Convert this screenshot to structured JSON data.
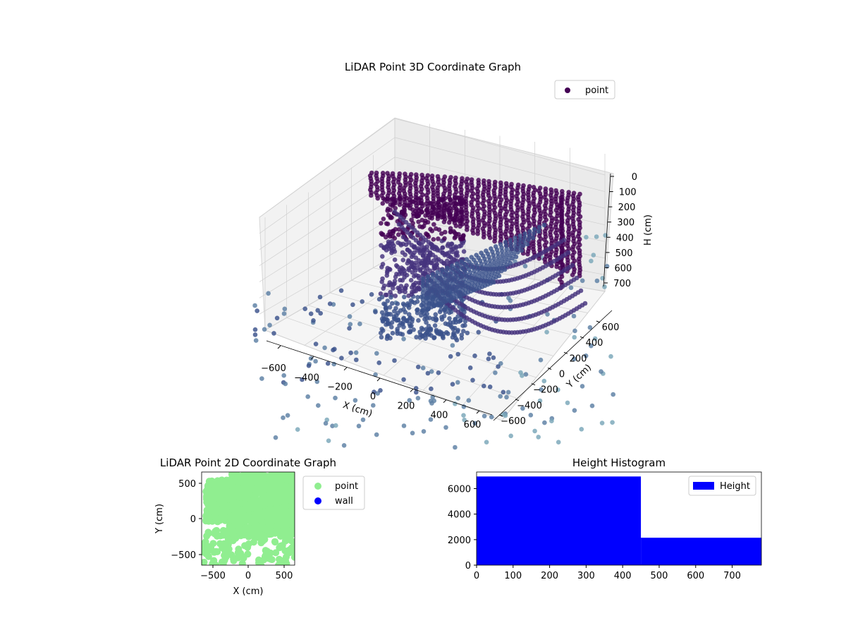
{
  "chart_data": [
    {
      "type": "scatter",
      "projection": "3d",
      "title": "LiDAR Point 3D Coordinate Graph",
      "xlabel": "X (cm)",
      "ylabel": "Y (cm)",
      "zlabel": "H (cm)",
      "xticks": [
        "−600",
        "−400",
        "−200",
        "0",
        "200",
        "400",
        "600"
      ],
      "yticks": [
        "−600",
        "−400",
        "−200",
        "0",
        "200",
        "400",
        "600"
      ],
      "zticks": [
        "0",
        "100",
        "200",
        "300",
        "400",
        "500",
        "600",
        "700"
      ],
      "xlim": [
        -650,
        650
      ],
      "ylim": [
        -650,
        650
      ],
      "zlim": [
        0,
        780
      ],
      "z_inverted": true,
      "grid": true,
      "legend": {
        "placement": "top-right",
        "entries": [
          {
            "label": "point",
            "color": "#440154"
          }
        ]
      },
      "colormap": [
        "#440154",
        "#46337e",
        "#3b528b",
        "#5b7fa3",
        "#79a6b8"
      ]
    },
    {
      "type": "scatter",
      "title": "LiDAR Point 2D Coordinate Graph",
      "xlabel": "X (cm)",
      "ylabel": "Y (cm)",
      "xticks": [
        "−500",
        "0",
        "500"
      ],
      "yticks": [
        "500",
        "0",
        "−500"
      ],
      "xlim": [
        -650,
        650
      ],
      "ylim": [
        -650,
        650
      ],
      "legend": {
        "placement": "outside-right",
        "entries": [
          {
            "label": "point",
            "color": "#90ee90"
          },
          {
            "label": "wall",
            "color": "#0000ff"
          }
        ]
      }
    },
    {
      "type": "bar",
      "title": "Height Histogram",
      "bins": [
        {
          "from": 0,
          "to": 450,
          "count": 6950
        },
        {
          "from": 450,
          "to": 780,
          "count": 2150
        }
      ],
      "xticks": [
        "0",
        "100",
        "200",
        "300",
        "400",
        "500",
        "600",
        "700"
      ],
      "yticks": [
        "0",
        "2000",
        "4000",
        "6000"
      ],
      "xlim": [
        0,
        780
      ],
      "ylim": [
        0,
        7300
      ],
      "color": "#0000ff",
      "legend": {
        "placement": "top-right",
        "entries": [
          {
            "label": "Height",
            "color": "#0000ff"
          }
        ]
      }
    }
  ]
}
